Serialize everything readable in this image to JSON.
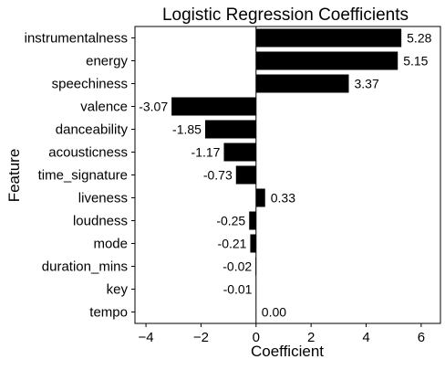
{
  "chart_data": {
    "type": "bar",
    "orientation": "horizontal",
    "title": "Logistic Regression Coefficients",
    "xlabel": "Coefficient",
    "ylabel": "Feature",
    "xlim": [
      -4.4,
      6.7
    ],
    "xticks": [
      -4,
      -2,
      0,
      2,
      4,
      6
    ],
    "xtick_labels": [
      "−4",
      "−2",
      "0",
      "2",
      "4",
      "6"
    ],
    "grid": false,
    "bar_color": "#000000",
    "zero_line_color": "#000000",
    "categories": [
      "instrumentalness",
      "energy",
      "speechiness",
      "valence",
      "danceability",
      "acousticness",
      "time_signature",
      "liveness",
      "loudness",
      "mode",
      "duration_mins",
      "key",
      "tempo"
    ],
    "values": [
      5.28,
      5.15,
      3.37,
      -3.07,
      -1.85,
      -1.17,
      -0.73,
      0.33,
      -0.25,
      -0.21,
      -0.02,
      -0.01,
      0.0
    ],
    "value_labels": [
      "5.28",
      "5.15",
      "3.37",
      "-3.07",
      "-1.85",
      "-1.17",
      "-0.73",
      "0.33",
      "-0.25",
      "-0.21",
      "-0.02",
      "-0.01",
      "0.00"
    ]
  }
}
